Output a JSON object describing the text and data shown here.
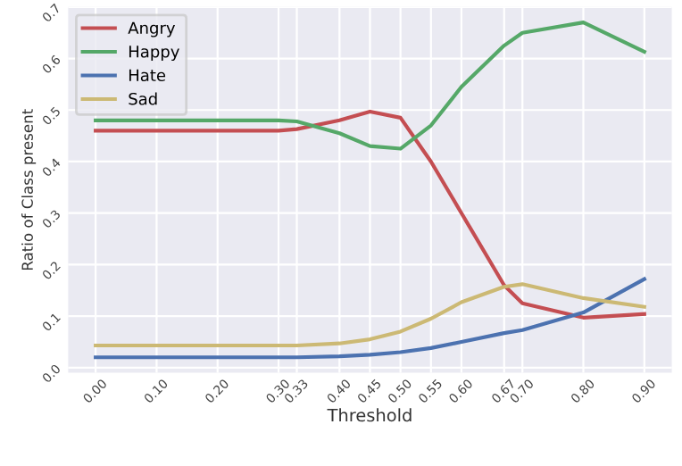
{
  "chart_data": {
    "type": "line",
    "xlabel": "Threshold",
    "ylabel": "Ratio of Class present",
    "x": [
      0.0,
      0.1,
      0.2,
      0.3,
      0.33,
      0.4,
      0.45,
      0.5,
      0.55,
      0.6,
      0.67,
      0.7,
      0.8,
      0.9
    ],
    "series": [
      {
        "name": "Angry",
        "color": "#c44e52",
        "values": [
          0.46,
          0.46,
          0.46,
          0.46,
          0.463,
          0.48,
          0.497,
          0.485,
          0.4,
          0.3,
          0.16,
          0.125,
          0.097,
          0.104
        ]
      },
      {
        "name": "Happy",
        "color": "#55a868",
        "values": [
          0.48,
          0.48,
          0.48,
          0.48,
          0.478,
          0.455,
          0.43,
          0.425,
          0.47,
          0.545,
          0.625,
          0.65,
          0.67,
          0.613
        ]
      },
      {
        "name": "Hate",
        "color": "#4c72b0",
        "values": [
          0.02,
          0.02,
          0.02,
          0.02,
          0.02,
          0.022,
          0.025,
          0.03,
          0.038,
          0.05,
          0.067,
          0.073,
          0.107,
          0.172
        ]
      },
      {
        "name": "Sad",
        "color": "#ccb974",
        "values": [
          0.043,
          0.043,
          0.043,
          0.043,
          0.043,
          0.047,
          0.055,
          0.07,
          0.095,
          0.127,
          0.157,
          0.162,
          0.135,
          0.118
        ]
      }
    ],
    "xlim": [
      -0.045,
      0.945
    ],
    "ylim": [
      -0.01,
      0.7
    ],
    "xticks": [
      {
        "value": 0.0,
        "label": "0.00"
      },
      {
        "value": 0.1,
        "label": "0.10"
      },
      {
        "value": 0.2,
        "label": "0.20"
      },
      {
        "value": 0.3,
        "label": "0.30"
      },
      {
        "value": 0.33,
        "label": "0.33"
      },
      {
        "value": 0.4,
        "label": "0.40"
      },
      {
        "value": 0.45,
        "label": "0.45"
      },
      {
        "value": 0.5,
        "label": "0.50"
      },
      {
        "value": 0.55,
        "label": "0.55"
      },
      {
        "value": 0.6,
        "label": "0.60"
      },
      {
        "value": 0.67,
        "label": "0.67"
      },
      {
        "value": 0.7,
        "label": "0.70"
      },
      {
        "value": 0.8,
        "label": "0.80"
      },
      {
        "value": 0.9,
        "label": "0.90"
      }
    ],
    "yticks": [
      {
        "value": 0.0,
        "label": "0.0"
      },
      0.1,
      0.2,
      0.3,
      0.4,
      0.5,
      0.6,
      0.7
    ],
    "grid": true,
    "legend": "top left"
  }
}
